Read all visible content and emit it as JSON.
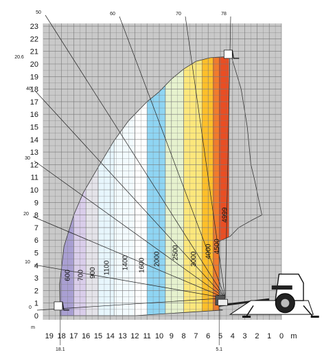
{
  "chart_data": {
    "type": "load-chart",
    "x_unit": "m",
    "y_unit": "m",
    "x_ticks": [
      "19",
      "18",
      "17",
      "16",
      "15",
      "14",
      "13",
      "12",
      "11",
      "10",
      "9",
      "8",
      "7",
      "6",
      "5",
      "4",
      "3",
      "2",
      "1",
      "0"
    ],
    "y_ticks": [
      "0",
      "1",
      "2",
      "3",
      "4",
      "5",
      "6",
      "7",
      "8",
      "9",
      "10",
      "11",
      "12",
      "13",
      "14",
      "15",
      "16",
      "17",
      "18",
      "19",
      "20",
      "21",
      "22",
      "23"
    ],
    "xlim": [
      0,
      19.5
    ],
    "ylim": [
      0,
      23
    ],
    "reach_marks": [
      "18.1",
      "5.1"
    ],
    "height_marks": [
      "20.6"
    ],
    "angle_labels": [
      "0",
      "10",
      "20",
      "30",
      "40",
      "50",
      "60",
      "70",
      "78"
    ],
    "load_zones": [
      {
        "label": "600",
        "color": "#a99fd2",
        "x_from": 18.1,
        "x_to": 17.0
      },
      {
        "label": "700",
        "color": "#d9cdea",
        "x_from": 17.0,
        "x_to": 16.0
      },
      {
        "label": "900",
        "color": "#e4e3e9",
        "x_from": 16.0,
        "x_to": 15.0
      },
      {
        "label": "1100",
        "color": "#e7f6fd",
        "x_from": 15.0,
        "x_to": 13.7
      },
      {
        "label": "1400",
        "color": "#f3fbfe",
        "x_from": 13.7,
        "x_to": 12.0
      },
      {
        "label": "1600",
        "color": "#ffffff",
        "x_from": 12.0,
        "x_to": 11.0
      },
      {
        "label": "2000",
        "color": "#8fd5f3",
        "x_from": 11.0,
        "x_to": 9.5
      },
      {
        "label": "2500",
        "color": "#e6f2ce",
        "x_from": 9.5,
        "x_to": 8.0
      },
      {
        "label": "3000",
        "color": "#fce77c",
        "x_from": 8.0,
        "x_to": 6.5
      },
      {
        "label": "4000",
        "color": "#ffbf2a",
        "x_from": 6.5,
        "x_to": 5.6
      },
      {
        "label": "4500",
        "color": "#f27b2c",
        "x_from": 5.6,
        "x_to": 5.1
      },
      {
        "label": "4999",
        "color": "#e94e23",
        "x_from": 5.1,
        "x_to": 4.3
      }
    ]
  }
}
